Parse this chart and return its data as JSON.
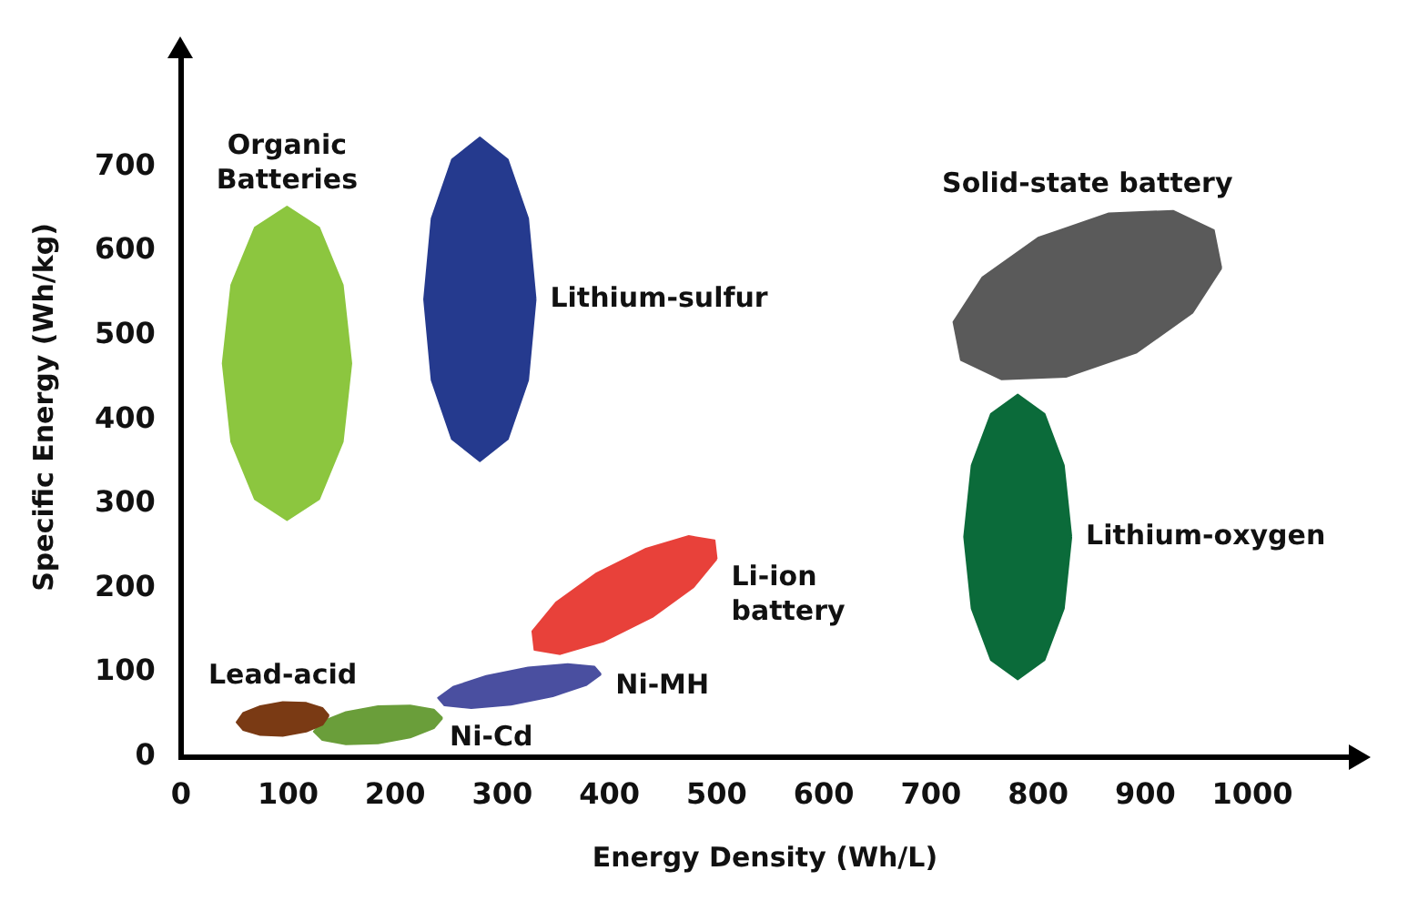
{
  "chart_data": {
    "type": "area",
    "xlabel": "Energy Density (Wh/L)",
    "ylabel": "Specific Energy (Wh/kg)",
    "xlim": [
      0,
      1090
    ],
    "ylim": [
      0,
      830
    ],
    "xticks": [
      0,
      100,
      200,
      300,
      400,
      500,
      600,
      700,
      800,
      900,
      1000
    ],
    "yticks": [
      0,
      100,
      200,
      300,
      400,
      500,
      600,
      700
    ],
    "grid": false,
    "marker": "none",
    "series": [
      {
        "name": "Organic Batteries",
        "color": "#8cc63f",
        "x": [
          159,
          151,
          129,
          99,
          69,
          47,
          39,
          47,
          69,
          99,
          129,
          151,
          159
        ],
        "values": [
          467,
          560,
          628,
          653,
          628,
          560,
          467,
          374,
          306,
          281,
          306,
          374,
          467
        ]
      },
      {
        "name": "Lithium-sulfur",
        "color": "#253a8e",
        "x": [
          331,
          324,
          305,
          279,
          253,
          234,
          227,
          234,
          253,
          279,
          305,
          324,
          331
        ],
        "values": [
          543,
          639,
          709,
          735,
          709,
          639,
          543,
          447,
          377,
          351,
          377,
          447,
          543
        ]
      },
      {
        "name": "Solid-state battery",
        "color": "#5a5a5a",
        "x": [
          971,
          964,
          926,
          866,
          800,
          748,
          721,
          728,
          766,
          826,
          892,
          944,
          971
        ],
        "values": [
          580,
          625,
          648,
          645,
          616,
          569,
          516,
          471,
          448,
          451,
          480,
          527,
          580
        ]
      },
      {
        "name": "Lithium-oxygen",
        "color": "#0b6b3a",
        "x": [
          831,
          824,
          806,
          781,
          756,
          738,
          731,
          738,
          756,
          781,
          806,
          824,
          831
        ],
        "values": [
          261,
          346,
          407,
          430,
          407,
          346,
          261,
          176,
          115,
          92,
          115,
          176,
          261
        ]
      },
      {
        "name": "Li-ion battery",
        "color": "#e8413a",
        "x": [
          500,
          498,
          474,
          434,
          388,
          350,
          328,
          330,
          354,
          394,
          440,
          478,
          500
        ],
        "values": [
          235,
          257,
          262,
          247,
          218,
          183,
          149,
          127,
          122,
          137,
          166,
          201,
          235
        ]
      },
      {
        "name": "Ni-MH",
        "color": "#4a4fa0",
        "x": [
          392,
          386,
          361,
          324,
          285,
          254,
          240,
          246,
          271,
          308,
          347,
          378,
          392
        ],
        "values": [
          98,
          107,
          110,
          106,
          96,
          83,
          70,
          61,
          58,
          62,
          72,
          85,
          98
        ]
      },
      {
        "name": "Lead-acid",
        "color": "#7a3a14",
        "x": [
          138,
          132,
          117,
          95,
          74,
          58,
          52,
          58,
          74,
          95,
          117,
          132,
          138
        ],
        "values": [
          49,
          58,
          64,
          65,
          60,
          52,
          41,
          32,
          26,
          25,
          30,
          38,
          49
        ]
      },
      {
        "name": "Ni-Cd",
        "color": "#6a9e3a",
        "x": [
          244,
          236,
          214,
          184,
          154,
          132,
          124,
          132,
          154,
          184,
          214,
          236,
          244
        ],
        "values": [
          46,
          56,
          61,
          60,
          53,
          42,
          30,
          20,
          15,
          16,
          23,
          34,
          46
        ]
      }
    ]
  }
}
